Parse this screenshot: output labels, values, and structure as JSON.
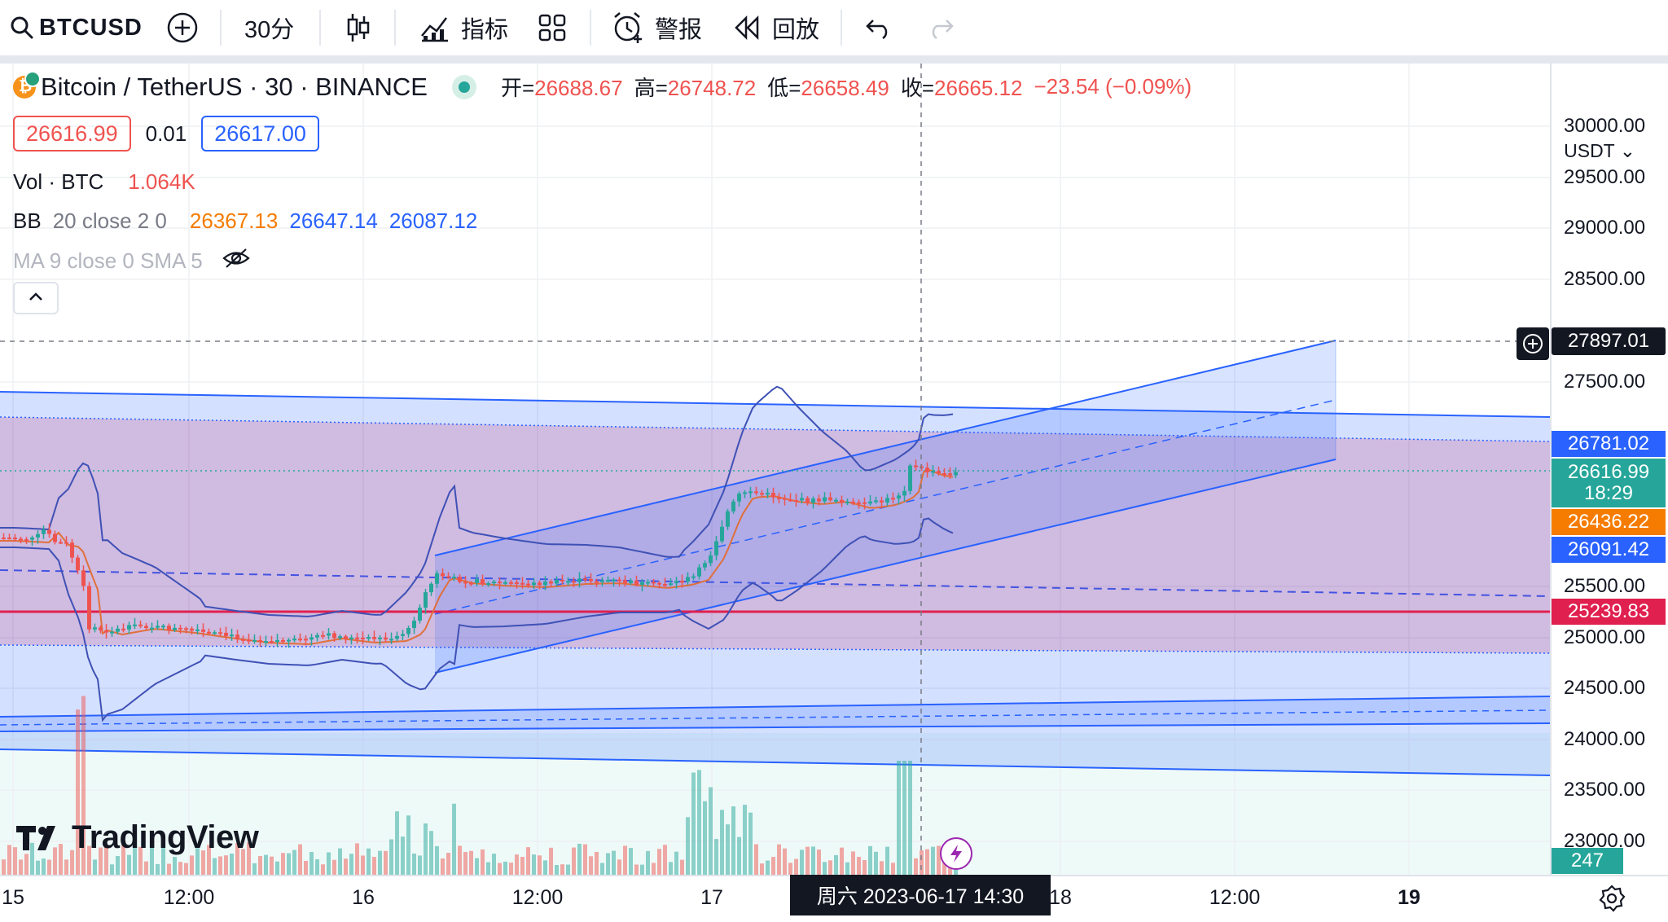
{
  "toolbar": {
    "symbol": "BTCUSD",
    "interval": "30分",
    "indicators_label": "指标",
    "alert_label": "警报",
    "replay_label": "回放"
  },
  "legend": {
    "title": "Bitcoin / TetherUS · 30 · BINANCE",
    "open_label": "开=",
    "open": "26688.67",
    "high_label": "高=",
    "high": "26748.72",
    "low_label": "低=",
    "low": "26658.49",
    "close_label": "收=",
    "close": "26665.12",
    "change": "−23.54 (−0.09%)",
    "bid": "26616.99",
    "spread": "0.01",
    "ask": "26617.00"
  },
  "indicators": {
    "vol_name": "Vol · BTC",
    "vol_value": "1.064K",
    "bb_name": "BB",
    "bb_args": "20 close 2 0",
    "bb_basis": "26367.13",
    "bb_upper": "26647.14",
    "bb_lower": "26087.12",
    "ma_label": "MA 9 close 0 SMA 5"
  },
  "price_axis": {
    "currency": "USDT",
    "ticks": [
      "30000.00",
      "29500.00",
      "29000.00",
      "28500.00",
      "27500.00",
      "25500.00",
      "25000.00",
      "24500.00",
      "24000.00",
      "23500.00",
      "23000.00"
    ],
    "labels": {
      "crosshair": "27897.01",
      "upper_channel": "26781.02",
      "last_price": "26616.99",
      "countdown": "18:29",
      "bb_basis": "26436.22",
      "bb_lower": "26091.42",
      "horizontal_line": "25239.83",
      "volume": "247"
    }
  },
  "time_axis": {
    "ticks": [
      "15",
      "12:00",
      "16",
      "12:00",
      "17",
      "18",
      "12:00",
      "19"
    ],
    "crosshair": "周六 2023-06-17   14:30"
  },
  "watermark": "TradingView",
  "colors": {
    "up": "#26a69a",
    "down": "#ef5350",
    "accent": "#2962ff",
    "bb_basis": "#f57c00",
    "channel_fill": "#2962ff",
    "range_fill": "#c2185b"
  }
}
